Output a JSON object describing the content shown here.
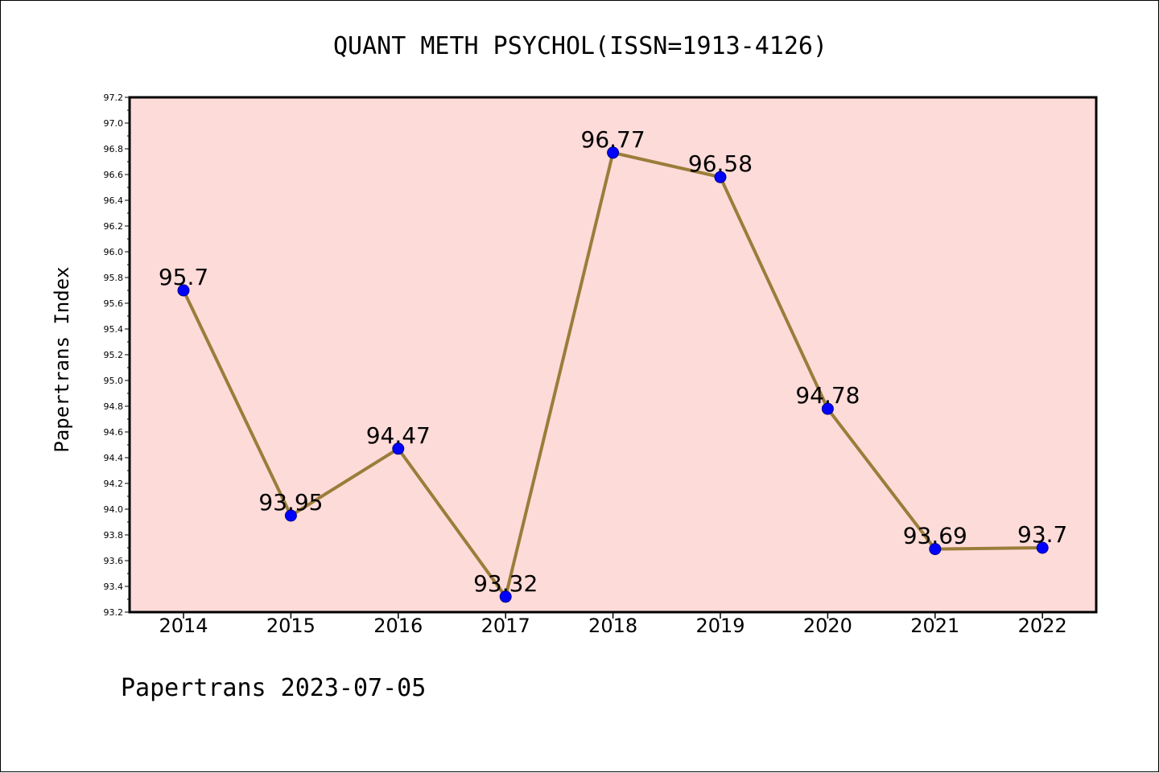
{
  "chart_data": {
    "type": "line",
    "title": "QUANT METH PSYCHOL(ISSN=1913-4126)",
    "ylabel": "Papertrans Index",
    "xlabel": "",
    "footer": "Papertrans 2023-07-05",
    "categories": [
      "2014",
      "2015",
      "2016",
      "2017",
      "2018",
      "2019",
      "2020",
      "2021",
      "2022"
    ],
    "values": [
      95.7,
      93.95,
      94.47,
      93.32,
      96.77,
      96.58,
      94.78,
      93.69,
      93.7
    ],
    "data_labels": [
      "95.7",
      "93.95",
      "94.47",
      "93.32",
      "96.77",
      "96.58",
      "94.78",
      "93.69",
      "93.7"
    ],
    "ylim": [
      93.2,
      97.2
    ],
    "yticks": [
      "93.2",
      "93.4",
      "93.6",
      "93.8",
      "94.0",
      "94.2",
      "94.4",
      "94.6",
      "94.8",
      "95.0",
      "95.2",
      "95.4",
      "95.6",
      "95.8",
      "96.0",
      "96.2",
      "96.4",
      "96.6",
      "96.8",
      "97.0",
      "97.2"
    ],
    "grid": false,
    "legend": "none",
    "colors": {
      "plot_background": "#fddbd9",
      "line": "#9a7d3a",
      "marker_fill": "#0000ff",
      "marker_edge": "#00008b",
      "axis": "#000000"
    }
  }
}
